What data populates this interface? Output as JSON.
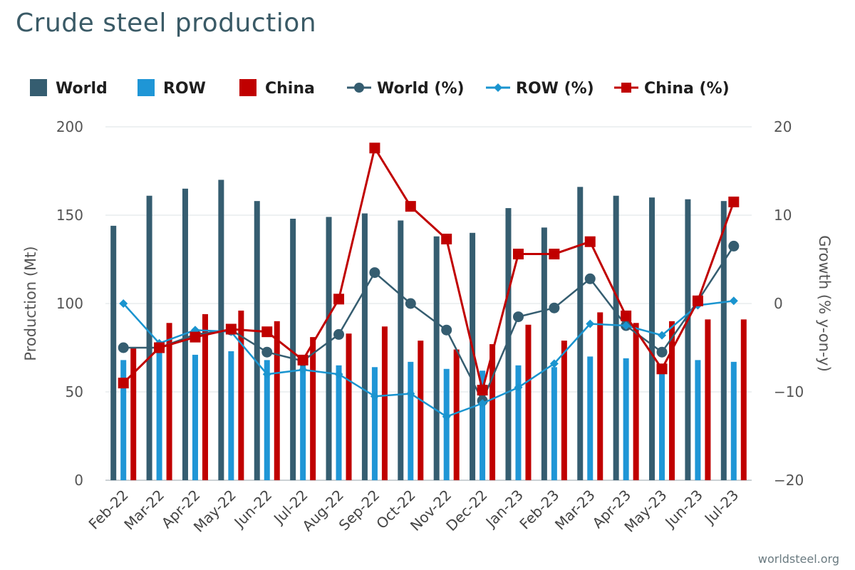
{
  "chart_data": {
    "type": "bar+line",
    "title": "Crude steel production",
    "categories": [
      "Feb-22",
      "Mar-22",
      "Apr-22",
      "May-22",
      "Jun-22",
      "Jul-22",
      "Aug-22",
      "Sep-22",
      "Oct-22",
      "Nov-22",
      "Dec-22",
      "Jan-23",
      "Feb-23",
      "Mar-23",
      "Apr-23",
      "May-23",
      "Jun-23",
      "Jul-23"
    ],
    "bar_series": [
      {
        "name": "World",
        "color": "#355d70",
        "values": [
          144,
          161,
          165,
          170,
          158,
          148,
          149,
          151,
          147,
          138,
          140,
          154,
          143,
          166,
          161,
          160,
          159,
          158
        ]
      },
      {
        "name": "ROW",
        "color": "#1f96d6",
        "values": [
          68,
          72,
          71,
          73,
          68,
          66,
          65,
          64,
          67,
          63,
          62,
          65,
          64,
          70,
          69,
          62,
          68,
          67
        ]
      },
      {
        "name": "China",
        "color": "#c00000",
        "values": [
          75,
          89,
          94,
          96,
          90,
          81,
          83,
          87,
          79,
          74,
          77,
          88,
          79,
          95,
          89,
          90,
          91,
          91
        ]
      }
    ],
    "line_series": [
      {
        "name": "World (%)",
        "color": "#355d70",
        "marker": "circle",
        "values": [
          -5.0,
          -5.0,
          -3.5,
          -3.0,
          -5.5,
          -6.5,
          -3.5,
          3.5,
          0.0,
          -3.0,
          -11.0,
          -1.5,
          -0.5,
          2.8,
          -2.5,
          -5.5,
          0.3,
          6.5
        ]
      },
      {
        "name": "ROW (%)",
        "color": "#1a94cf",
        "marker": "diamond",
        "values": [
          0.0,
          -4.5,
          -3.0,
          -3.2,
          -8.0,
          -7.5,
          -8.0,
          -10.5,
          -10.2,
          -12.8,
          -11.3,
          -9.5,
          -6.8,
          -2.3,
          -2.5,
          -3.6,
          -0.2,
          0.3
        ]
      },
      {
        "name": "China (%)",
        "color": "#c00000",
        "marker": "square",
        "values": [
          -9.0,
          -5.0,
          -3.8,
          -2.9,
          -3.2,
          -6.4,
          0.5,
          17.6,
          11.0,
          7.3,
          -9.8,
          5.6,
          5.6,
          7.0,
          -1.4,
          -7.4,
          0.3,
          11.5
        ]
      }
    ],
    "y_left": {
      "label": "Production (Mt)",
      "min": 0,
      "max": 200,
      "ticks": [
        "200",
        "150",
        "100",
        "50",
        "0"
      ],
      "tick_values": [
        200,
        150,
        100,
        50,
        0
      ]
    },
    "y_right": {
      "label": "Growth (% y-on-y)",
      "min": -20,
      "max": 20,
      "ticks": [
        "20",
        "10",
        "0",
        "−10",
        "−20"
      ],
      "tick_values": [
        20,
        10,
        0,
        -10,
        -20
      ]
    },
    "legend_placement": "top",
    "grid": true
  },
  "source": "worldsteel.org"
}
